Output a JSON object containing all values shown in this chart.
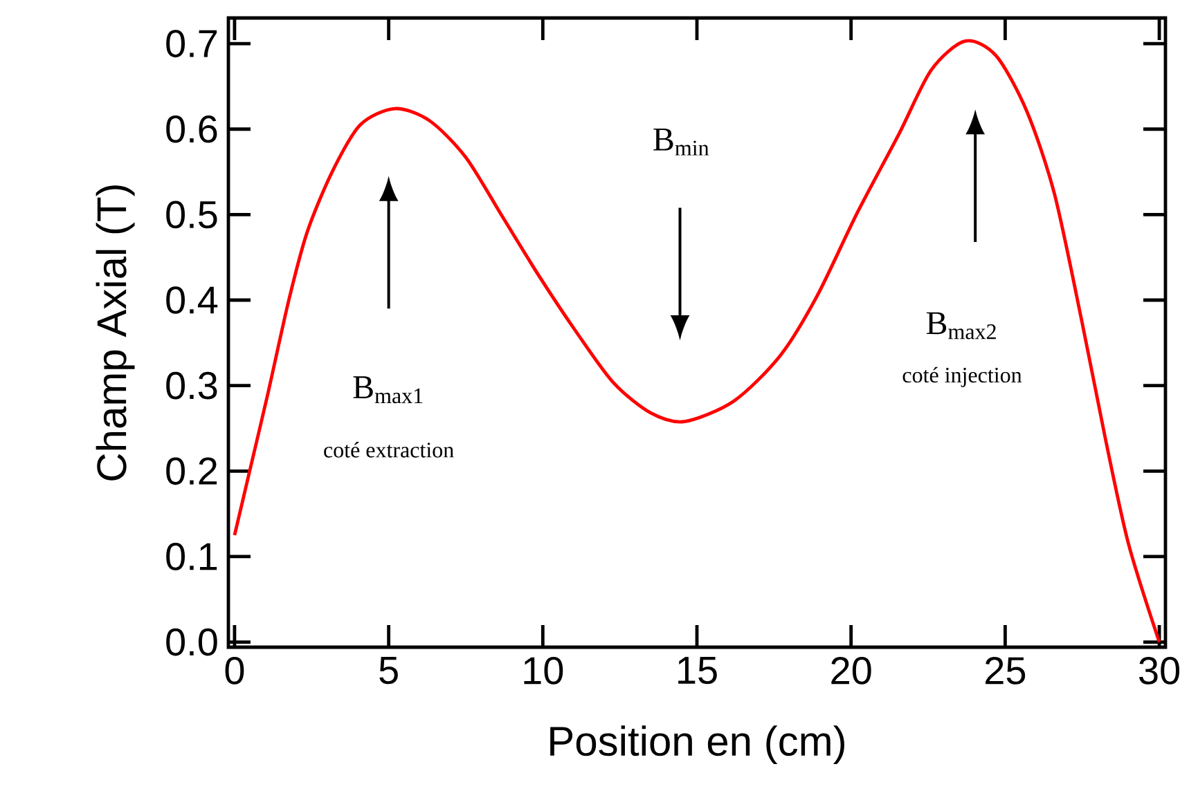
{
  "chart_data": {
    "type": "line",
    "xlabel": "Position en (cm)",
    "ylabel": "Champ Axial (T)",
    "xlim": [
      -0.2,
      30.2
    ],
    "ylim": [
      -0.006,
      0.73
    ],
    "xticks": [
      0,
      5,
      10,
      15,
      20,
      25,
      30
    ],
    "yticks": [
      {
        "value": 0,
        "label": "0.0"
      },
      {
        "value": 0.1,
        "label": "0.1"
      },
      {
        "value": 0.2,
        "label": "0.2"
      },
      {
        "value": 0.3,
        "label": "0.3"
      },
      {
        "value": 0.4,
        "label": "0.4"
      },
      {
        "value": 0.5,
        "label": "0.5"
      },
      {
        "value": 0.6,
        "label": "0.6"
      },
      {
        "value": 0.7,
        "label": "0.7"
      }
    ],
    "annotations": [
      "B$_{max1}$",
      "coté extraction",
      "B$_{min}$",
      "B$_{max2}$",
      "coté injection"
    ],
    "series": [
      {
        "color": "#ff0000",
        "x": [
          0,
          0.49,
          1.09,
          1.76,
          2.36,
          3.18,
          4.08,
          5.2,
          6.32,
          7.5,
          8.7,
          9.9,
          11.1,
          12.3,
          13.5,
          14.6,
          16.2,
          17.7,
          18.9,
          20.2,
          21.55,
          22.6,
          23.7,
          24.7,
          25.7,
          26.6,
          27.5,
          28.25,
          29.0,
          30
        ],
        "values": [
          0.125,
          0.2,
          0.292,
          0.4,
          0.48,
          0.551,
          0.605,
          0.624,
          0.61,
          0.567,
          0.497,
          0.427,
          0.362,
          0.303,
          0.268,
          0.258,
          0.282,
          0.335,
          0.405,
          0.502,
          0.594,
          0.669,
          0.703,
          0.686,
          0.621,
          0.524,
          0.373,
          0.238,
          0.115,
          0.0
        ]
      }
    ]
  }
}
